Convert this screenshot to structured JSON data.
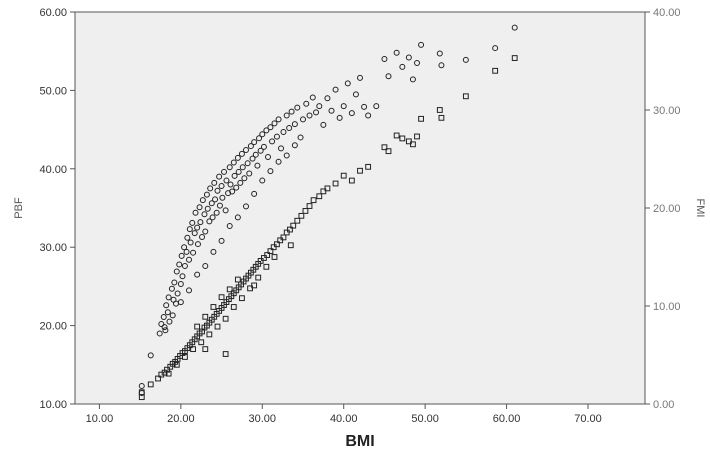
{
  "chart_data": {
    "type": "scatter",
    "xlabel": "BMI",
    "ylabel": "PBF",
    "ylabel_right": "FMI",
    "xlim": [
      7,
      77
    ],
    "ylim": [
      10,
      60
    ],
    "ylim_right": [
      0,
      40
    ],
    "xticks": [
      "10.00",
      "20.00",
      "30.00",
      "40.00",
      "50.00",
      "60.00",
      "70.00"
    ],
    "yticks": [
      "10.00",
      "20.00",
      "30.00",
      "40.00",
      "50.00",
      "60.00"
    ],
    "yticks_right": [
      "0.00",
      "10.00",
      "20.00",
      "30.00",
      "40.00"
    ],
    "grid": false,
    "plot_background": "#efefef",
    "series": [
      {
        "marker": "circle",
        "axis": "left",
        "points": [
          [
            15.2,
            12.3
          ],
          [
            15.2,
            11.4
          ],
          [
            16.3,
            16.2
          ],
          [
            17.4,
            19.0
          ],
          [
            17.6,
            20.2
          ],
          [
            17.9,
            21.1
          ],
          [
            18.1,
            19.4
          ],
          [
            18.2,
            22.6
          ],
          [
            18.4,
            21.7
          ],
          [
            18.5,
            23.6
          ],
          [
            18.6,
            20.5
          ],
          [
            18.9,
            24.7
          ],
          [
            19.1,
            23.3
          ],
          [
            19.2,
            25.5
          ],
          [
            19.4,
            22.8
          ],
          [
            19.5,
            26.9
          ],
          [
            19.6,
            24.1
          ],
          [
            19.8,
            27.8
          ],
          [
            20.0,
            25.3
          ],
          [
            20.1,
            28.9
          ],
          [
            20.2,
            26.3
          ],
          [
            20.4,
            30.0
          ],
          [
            20.5,
            27.6
          ],
          [
            20.7,
            29.4
          ],
          [
            20.8,
            31.2
          ],
          [
            21.0,
            28.4
          ],
          [
            21.1,
            32.3
          ],
          [
            21.2,
            30.6
          ],
          [
            21.4,
            33.1
          ],
          [
            21.5,
            29.3
          ],
          [
            21.7,
            31.8
          ],
          [
            21.8,
            34.4
          ],
          [
            22.0,
            32.5
          ],
          [
            22.1,
            30.4
          ],
          [
            22.3,
            35.1
          ],
          [
            22.4,
            33.2
          ],
          [
            22.6,
            31.3
          ],
          [
            22.7,
            36.0
          ],
          [
            22.9,
            34.2
          ],
          [
            23.0,
            32.0
          ],
          [
            23.2,
            36.7
          ],
          [
            23.3,
            34.9
          ],
          [
            23.5,
            33.3
          ],
          [
            23.6,
            37.5
          ],
          [
            23.8,
            35.6
          ],
          [
            23.9,
            33.8
          ],
          [
            24.1,
            38.2
          ],
          [
            24.2,
            36.1
          ],
          [
            24.4,
            34.4
          ],
          [
            24.5,
            37.2
          ],
          [
            24.7,
            39.0
          ],
          [
            24.8,
            35.3
          ],
          [
            25.0,
            37.8
          ],
          [
            25.1,
            36.3
          ],
          [
            25.3,
            39.6
          ],
          [
            25.5,
            34.7
          ],
          [
            25.6,
            38.5
          ],
          [
            25.8,
            36.9
          ],
          [
            26.0,
            40.2
          ],
          [
            26.1,
            38.0
          ],
          [
            26.3,
            37.1
          ],
          [
            26.5,
            40.8
          ],
          [
            26.6,
            39.1
          ],
          [
            26.8,
            37.6
          ],
          [
            27.0,
            41.4
          ],
          [
            27.1,
            39.6
          ],
          [
            27.3,
            38.2
          ],
          [
            27.5,
            41.9
          ],
          [
            27.6,
            40.2
          ],
          [
            27.8,
            38.8
          ],
          [
            28.0,
            42.4
          ],
          [
            28.2,
            40.7
          ],
          [
            28.4,
            39.4
          ],
          [
            28.6,
            42.9
          ],
          [
            28.8,
            41.3
          ],
          [
            29.0,
            43.4
          ],
          [
            29.2,
            41.8
          ],
          [
            29.4,
            40.4
          ],
          [
            29.6,
            43.9
          ],
          [
            29.8,
            42.3
          ],
          [
            30.0,
            44.4
          ],
          [
            30.2,
            42.8
          ],
          [
            30.5,
            44.9
          ],
          [
            30.7,
            41.5
          ],
          [
            31.0,
            45.3
          ],
          [
            31.2,
            43.5
          ],
          [
            31.5,
            45.8
          ],
          [
            31.8,
            44.1
          ],
          [
            32.0,
            46.3
          ],
          [
            32.3,
            42.6
          ],
          [
            32.6,
            44.7
          ],
          [
            33.0,
            46.8
          ],
          [
            33.3,
            45.2
          ],
          [
            33.6,
            47.3
          ],
          [
            34.0,
            45.7
          ],
          [
            34.3,
            47.8
          ],
          [
            34.7,
            44.0
          ],
          [
            35.0,
            46.3
          ],
          [
            35.4,
            48.3
          ],
          [
            35.8,
            46.8
          ],
          [
            36.2,
            49.1
          ],
          [
            36.6,
            47.2
          ],
          [
            37.0,
            48.0
          ],
          [
            37.5,
            45.6
          ],
          [
            38.0,
            49.0
          ],
          [
            38.5,
            47.4
          ],
          [
            39.0,
            50.1
          ],
          [
            39.5,
            46.5
          ],
          [
            40.0,
            48.0
          ],
          [
            40.5,
            50.9
          ],
          [
            41.0,
            47.1
          ],
          [
            41.5,
            49.5
          ],
          [
            42.0,
            51.6
          ],
          [
            42.5,
            47.9
          ],
          [
            43.0,
            46.8
          ],
          [
            44.0,
            48.0
          ],
          [
            45.0,
            54.0
          ],
          [
            45.5,
            51.8
          ],
          [
            46.5,
            54.8
          ],
          [
            47.2,
            53.0
          ],
          [
            48.0,
            54.2
          ],
          [
            48.5,
            51.4
          ],
          [
            49.0,
            53.5
          ],
          [
            49.5,
            55.8
          ],
          [
            51.8,
            54.7
          ],
          [
            52.0,
            53.2
          ],
          [
            55.0,
            53.9
          ],
          [
            58.6,
            55.4
          ],
          [
            61.0,
            58.0
          ],
          [
            18.0,
            19.8
          ],
          [
            19.0,
            21.3
          ],
          [
            20.0,
            23.0
          ],
          [
            21.0,
            24.5
          ],
          [
            22.0,
            26.5
          ],
          [
            23.0,
            27.6
          ],
          [
            24.0,
            29.4
          ],
          [
            25.0,
            30.8
          ],
          [
            26.0,
            32.7
          ],
          [
            27.0,
            33.8
          ],
          [
            28.0,
            35.2
          ],
          [
            29.0,
            36.8
          ],
          [
            30.0,
            38.5
          ],
          [
            31.0,
            39.7
          ],
          [
            32.0,
            40.9
          ],
          [
            33.0,
            41.7
          ],
          [
            34.0,
            43.0
          ]
        ]
      },
      {
        "marker": "square",
        "axis": "right",
        "points": [
          [
            15.2,
            1.2
          ],
          [
            15.2,
            0.7
          ],
          [
            16.3,
            2.0
          ],
          [
            17.2,
            2.6
          ],
          [
            17.6,
            3.0
          ],
          [
            18.0,
            3.2
          ],
          [
            18.3,
            3.5
          ],
          [
            18.7,
            3.8
          ],
          [
            19.0,
            4.1
          ],
          [
            19.3,
            4.3
          ],
          [
            19.6,
            4.6
          ],
          [
            19.9,
            4.9
          ],
          [
            20.2,
            5.2
          ],
          [
            20.5,
            5.4
          ],
          [
            20.8,
            5.7
          ],
          [
            21.1,
            6.0
          ],
          [
            21.4,
            6.3
          ],
          [
            21.7,
            6.6
          ],
          [
            22.0,
            6.9
          ],
          [
            22.3,
            7.2
          ],
          [
            22.6,
            7.4
          ],
          [
            22.9,
            7.8
          ],
          [
            23.2,
            8.0
          ],
          [
            23.5,
            8.3
          ],
          [
            23.8,
            8.6
          ],
          [
            24.1,
            8.9
          ],
          [
            24.4,
            9.2
          ],
          [
            24.7,
            9.5
          ],
          [
            25.0,
            9.8
          ],
          [
            25.3,
            10.1
          ],
          [
            25.6,
            10.4
          ],
          [
            25.9,
            10.7
          ],
          [
            26.2,
            11.0
          ],
          [
            26.5,
            11.3
          ],
          [
            26.8,
            11.6
          ],
          [
            27.1,
            11.9
          ],
          [
            27.4,
            12.2
          ],
          [
            27.7,
            12.5
          ],
          [
            28.0,
            12.8
          ],
          [
            28.3,
            13.1
          ],
          [
            28.6,
            13.4
          ],
          [
            28.9,
            13.7
          ],
          [
            29.2,
            14.0
          ],
          [
            29.5,
            14.3
          ],
          [
            29.8,
            14.6
          ],
          [
            30.2,
            14.9
          ],
          [
            30.6,
            15.2
          ],
          [
            31.0,
            15.6
          ],
          [
            31.4,
            16.0
          ],
          [
            31.8,
            16.3
          ],
          [
            32.2,
            16.7
          ],
          [
            32.6,
            17.0
          ],
          [
            33.0,
            17.5
          ],
          [
            33.4,
            17.8
          ],
          [
            33.8,
            18.2
          ],
          [
            34.3,
            18.7
          ],
          [
            34.8,
            19.2
          ],
          [
            35.3,
            19.7
          ],
          [
            35.8,
            20.2
          ],
          [
            36.3,
            20.8
          ],
          [
            37.0,
            21.2
          ],
          [
            37.5,
            21.7
          ],
          [
            38.0,
            22.0
          ],
          [
            39.0,
            22.5
          ],
          [
            40.0,
            23.3
          ],
          [
            41.0,
            22.8
          ],
          [
            42.0,
            23.8
          ],
          [
            43.0,
            24.2
          ],
          [
            45.0,
            26.2
          ],
          [
            45.5,
            25.8
          ],
          [
            46.5,
            27.4
          ],
          [
            47.2,
            27.1
          ],
          [
            48.0,
            26.8
          ],
          [
            48.5,
            26.5
          ],
          [
            49.0,
            27.3
          ],
          [
            49.5,
            29.1
          ],
          [
            51.8,
            30.0
          ],
          [
            52.0,
            29.2
          ],
          [
            55.0,
            31.4
          ],
          [
            58.6,
            34.0
          ],
          [
            61.0,
            35.3
          ],
          [
            18.5,
            3.1
          ],
          [
            19.5,
            4.0
          ],
          [
            20.5,
            4.8
          ],
          [
            21.5,
            5.6
          ],
          [
            22.5,
            6.3
          ],
          [
            23.5,
            7.1
          ],
          [
            24.5,
            7.9
          ],
          [
            25.5,
            8.7
          ],
          [
            26.5,
            9.9
          ],
          [
            27.5,
            10.8
          ],
          [
            28.5,
            11.8
          ],
          [
            29.5,
            12.9
          ],
          [
            30.5,
            14.0
          ],
          [
            22.0,
            7.9
          ],
          [
            23.0,
            8.9
          ],
          [
            24.0,
            9.9
          ],
          [
            25.0,
            10.9
          ],
          [
            26.0,
            11.7
          ],
          [
            27.0,
            12.7
          ],
          [
            25.5,
            5.1
          ],
          [
            23.0,
            5.6
          ],
          [
            29.0,
            12.1
          ],
          [
            31.5,
            15.0
          ],
          [
            33.5,
            16.2
          ]
        ]
      }
    ]
  }
}
